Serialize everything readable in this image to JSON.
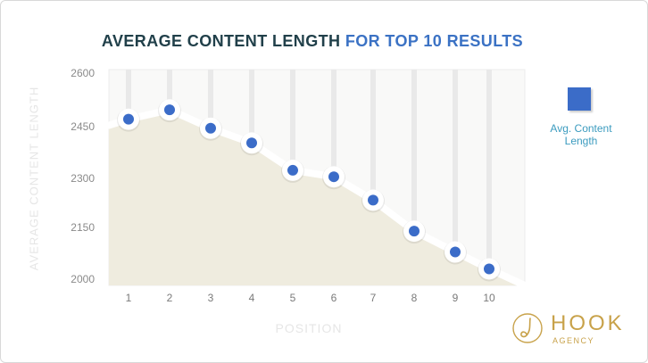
{
  "chart_data": {
    "type": "area",
    "title_part1": "AVERAGE CONTENT LENGTH",
    "title_part2": "FOR TOP 10 RESULTS",
    "xlabel": "POSITION",
    "ylabel": "AVERAGE CONTENT LENGTH",
    "categories": [
      "1",
      "2",
      "3",
      "4",
      "5",
      "6",
      "7",
      "8",
      "9",
      "10"
    ],
    "yticks": [
      "2600",
      "2450",
      "2300",
      "2150",
      "2000"
    ],
    "ylim": [
      2000,
      2600
    ],
    "series": [
      {
        "name": "Avg. Content Length",
        "values": [
          2462,
          2488,
          2437,
          2396,
          2320,
          2302,
          2237,
          2151,
          2093,
          2046
        ]
      }
    ],
    "legend": {
      "position": "right"
    },
    "grid": true,
    "colors": {
      "marker": "#3b6cc8",
      "area": "#efecdf",
      "line": "#ffffff",
      "title_dark": "#21404a",
      "title_accent": "#3b72c4",
      "legend_text": "#3b9bbf"
    }
  },
  "legend": {
    "label_line1": "Avg. Content",
    "label_line2": "Length"
  },
  "logo": {
    "name": "HOOK",
    "subtitle": "AGENCY",
    "color": "#c8a24a"
  }
}
